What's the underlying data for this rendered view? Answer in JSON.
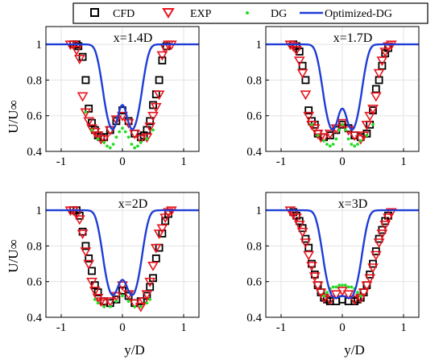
{
  "chart_data": {
    "type": "scatter",
    "ylabel": "U/U∞",
    "xlabel": "y/D",
    "xlim": [
      -1.25,
      1.25
    ],
    "ylim": [
      0.4,
      1.1
    ],
    "xticks": [
      -1,
      0,
      1
    ],
    "yticks": [
      0.4,
      0.6,
      0.8,
      1
    ],
    "grid": true,
    "legend_position": "top",
    "legend": [
      "CFD",
      "EXP",
      "DG",
      "Optimized-DG"
    ],
    "colors": {
      "CFD": "#000000",
      "EXP": "#e8141e",
      "DG": "#22dd22",
      "Optimized-DG": "#1f3dd6"
    },
    "panels": [
      {
        "title": "x=1.4D",
        "series": [
          {
            "name": "CFD",
            "x": [
              -0.8,
              -0.75,
              -0.72,
              -0.65,
              -0.6,
              -0.55,
              -0.5,
              -0.45,
              -0.4,
              -0.35,
              -0.3,
              -0.2,
              -0.1,
              0,
              0.1,
              0.2,
              0.3,
              0.35,
              0.4,
              0.45,
              0.5,
              0.55,
              0.6,
              0.65,
              0.72
            ],
            "y": [
              1.0,
              1.0,
              0.99,
              0.93,
              0.8,
              0.64,
              0.56,
              0.52,
              0.49,
              0.48,
              0.48,
              0.52,
              0.57,
              0.63,
              0.57,
              0.5,
              0.48,
              0.49,
              0.52,
              0.57,
              0.66,
              0.72,
              0.8,
              0.91,
              0.99
            ]
          },
          {
            "name": "EXP",
            "x": [
              -0.85,
              -0.8,
              -0.75,
              -0.7,
              -0.65,
              -0.6,
              -0.55,
              -0.5,
              -0.45,
              -0.4,
              -0.35,
              -0.3,
              -0.2,
              -0.1,
              0,
              0.1,
              0.2,
              0.3,
              0.4,
              0.45,
              0.5,
              0.55,
              0.6,
              0.65,
              0.7,
              0.75,
              0.8
            ],
            "y": [
              1.0,
              1.0,
              0.97,
              0.92,
              0.71,
              0.62,
              0.57,
              0.53,
              0.51,
              0.49,
              0.47,
              0.47,
              0.52,
              0.58,
              0.6,
              0.56,
              0.5,
              0.47,
              0.48,
              0.54,
              0.6,
              0.65,
              0.72,
              0.94,
              0.98,
              1.0,
              1.0
            ]
          },
          {
            "name": "DG",
            "x": [
              -0.6,
              -0.5,
              -0.4,
              -0.3,
              -0.25,
              -0.2,
              -0.15,
              -0.1,
              -0.05,
              0,
              0.05,
              0.1,
              0.15,
              0.2,
              0.25,
              0.3,
              0.4,
              0.5
            ],
            "y": [
              0.62,
              0.52,
              0.47,
              0.45,
              0.43,
              0.42,
              0.44,
              0.48,
              0.51,
              0.53,
              0.51,
              0.48,
              0.44,
              0.42,
              0.43,
              0.45,
              0.47,
              0.52
            ]
          },
          {
            "name": "Optimized-DG",
            "line": true,
            "w": 0.34,
            "s": 0.2,
            "amp": 0.52,
            "c": 0.48,
            "ca": 0.18,
            "cs": 0.11
          }
        ]
      },
      {
        "title": "x=1.7D",
        "series": [
          {
            "name": "CFD",
            "x": [
              -0.8,
              -0.75,
              -0.7,
              -0.65,
              -0.6,
              -0.55,
              -0.5,
              -0.45,
              -0.4,
              -0.3,
              -0.2,
              -0.1,
              0,
              0.1,
              0.2,
              0.3,
              0.4,
              0.45,
              0.5,
              0.55,
              0.6,
              0.65,
              0.7,
              0.75
            ],
            "y": [
              1.0,
              0.99,
              0.96,
              0.88,
              0.8,
              0.63,
              0.57,
              0.55,
              0.5,
              0.48,
              0.49,
              0.52,
              0.55,
              0.53,
              0.49,
              0.48,
              0.5,
              0.55,
              0.63,
              0.75,
              0.8,
              0.88,
              0.95,
              0.98
            ]
          },
          {
            "name": "EXP",
            "x": [
              -0.85,
              -0.8,
              -0.75,
              -0.7,
              -0.65,
              -0.6,
              -0.55,
              -0.5,
              -0.45,
              -0.4,
              -0.35,
              -0.3,
              -0.2,
              -0.1,
              0,
              0.1,
              0.2,
              0.3,
              0.35,
              0.4,
              0.45,
              0.5,
              0.55,
              0.6,
              0.65,
              0.7,
              0.75,
              0.8
            ],
            "y": [
              1.0,
              0.99,
              0.97,
              0.91,
              0.84,
              0.72,
              0.6,
              0.55,
              0.53,
              0.5,
              0.48,
              0.48,
              0.5,
              0.53,
              0.56,
              0.52,
              0.49,
              0.47,
              0.49,
              0.55,
              0.6,
              0.64,
              0.71,
              0.84,
              0.91,
              0.96,
              0.99,
              1.0
            ]
          },
          {
            "name": "DG",
            "x": [
              -0.5,
              -0.4,
              -0.3,
              -0.25,
              -0.2,
              -0.15,
              -0.1,
              -0.05,
              0,
              0.05,
              0.1,
              0.15,
              0.2,
              0.25,
              0.3,
              0.4,
              0.5
            ],
            "y": [
              0.55,
              0.49,
              0.46,
              0.44,
              0.43,
              0.44,
              0.47,
              0.52,
              0.55,
              0.52,
              0.47,
              0.44,
              0.43,
              0.44,
              0.46,
              0.49,
              0.55
            ]
          },
          {
            "name": "Optimized-DG",
            "line": true,
            "w": 0.34,
            "s": 0.2,
            "amp": 0.52,
            "c": 0.48,
            "ca": 0.16,
            "cs": 0.11
          }
        ]
      },
      {
        "title": "x=2D",
        "series": [
          {
            "name": "CFD",
            "x": [
              -0.8,
              -0.75,
              -0.7,
              -0.65,
              -0.6,
              -0.55,
              -0.5,
              -0.45,
              -0.4,
              -0.3,
              -0.2,
              -0.1,
              0,
              0.1,
              0.2,
              0.3,
              0.4,
              0.45,
              0.5,
              0.55,
              0.6,
              0.65,
              0.7,
              0.75
            ],
            "y": [
              1.0,
              1.0,
              0.97,
              0.88,
              0.8,
              0.73,
              0.66,
              0.58,
              0.54,
              0.49,
              0.48,
              0.5,
              0.55,
              0.52,
              0.48,
              0.49,
              0.52,
              0.57,
              0.62,
              0.73,
              0.79,
              0.87,
              0.94,
              0.98
            ]
          },
          {
            "name": "EXP",
            "x": [
              -0.85,
              -0.8,
              -0.75,
              -0.7,
              -0.65,
              -0.6,
              -0.55,
              -0.5,
              -0.45,
              -0.4,
              -0.35,
              -0.3,
              -0.2,
              -0.1,
              0,
              0.1,
              0.2,
              0.3,
              0.35,
              0.4,
              0.45,
              0.5,
              0.55,
              0.6,
              0.65,
              0.7,
              0.75,
              0.8
            ],
            "y": [
              1.0,
              1.0,
              0.98,
              0.95,
              0.87,
              0.77,
              0.7,
              0.6,
              0.55,
              0.51,
              0.49,
              0.48,
              0.49,
              0.52,
              0.58,
              0.53,
              0.48,
              0.46,
              0.49,
              0.53,
              0.6,
              0.69,
              0.79,
              0.87,
              0.9,
              0.96,
              0.99,
              1.0
            ]
          },
          {
            "name": "DG",
            "x": [
              -0.45,
              -0.4,
              -0.3,
              -0.2,
              -0.1,
              0,
              0.1,
              0.2,
              0.3,
              0.4,
              0.45
            ],
            "y": [
              0.5,
              0.48,
              0.46,
              0.46,
              0.49,
              0.52,
              0.49,
              0.46,
              0.46,
              0.48,
              0.5
            ]
          },
          {
            "name": "Optimized-DG",
            "line": true,
            "w": 0.34,
            "s": 0.21,
            "amp": 0.52,
            "c": 0.48,
            "ca": 0.13,
            "cs": 0.12
          }
        ]
      },
      {
        "title": "x=3D",
        "series": [
          {
            "name": "CFD",
            "x": [
              -0.8,
              -0.75,
              -0.7,
              -0.65,
              -0.6,
              -0.55,
              -0.5,
              -0.45,
              -0.4,
              -0.35,
              -0.3,
              -0.25,
              -0.2,
              -0.1,
              0,
              0.1,
              0.2,
              0.25,
              0.3,
              0.35,
              0.4,
              0.45,
              0.5,
              0.55,
              0.6,
              0.65,
              0.7,
              0.75
            ],
            "y": [
              0.99,
              0.97,
              0.94,
              0.9,
              0.84,
              0.79,
              0.7,
              0.64,
              0.58,
              0.54,
              0.51,
              0.5,
              0.49,
              0.49,
              0.5,
              0.49,
              0.49,
              0.5,
              0.51,
              0.54,
              0.58,
              0.64,
              0.7,
              0.77,
              0.84,
              0.89,
              0.94,
              0.97
            ]
          },
          {
            "name": "EXP",
            "x": [
              -0.85,
              -0.8,
              -0.75,
              -0.7,
              -0.65,
              -0.6,
              -0.55,
              -0.5,
              -0.45,
              -0.4,
              -0.35,
              -0.3,
              -0.2,
              -0.1,
              0,
              0.1,
              0.2,
              0.3,
              0.35,
              0.4,
              0.45,
              0.5,
              0.55,
              0.6,
              0.65,
              0.7,
              0.75,
              0.8
            ],
            "y": [
              1.0,
              0.98,
              0.96,
              0.92,
              0.88,
              0.82,
              0.75,
              0.69,
              0.63,
              0.58,
              0.54,
              0.51,
              0.5,
              0.53,
              0.55,
              0.53,
              0.5,
              0.51,
              0.54,
              0.58,
              0.62,
              0.68,
              0.75,
              0.82,
              0.87,
              0.92,
              0.96,
              0.99
            ]
          },
          {
            "name": "DG",
            "x": [
              -0.3,
              -0.25,
              -0.2,
              -0.15,
              -0.1,
              -0.05,
              0,
              0.05,
              0.1,
              0.15,
              0.2,
              0.25,
              0.3
            ],
            "y": [
              0.52,
              0.54,
              0.56,
              0.57,
              0.57,
              0.58,
              0.58,
              0.58,
              0.57,
              0.57,
              0.56,
              0.54,
              0.52
            ]
          },
          {
            "name": "Optimized-DG",
            "line": true,
            "w": 0.34,
            "s": 0.22,
            "amp": 0.51,
            "c": 0.49,
            "ca": 0.03,
            "cs": 0.12
          }
        ]
      }
    ]
  }
}
